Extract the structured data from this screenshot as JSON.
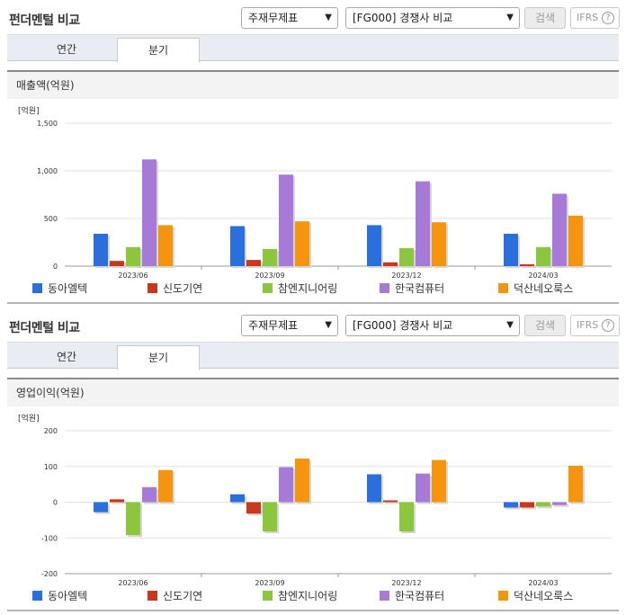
{
  "sections": [
    {
      "title": "펀더멘털 비교",
      "select_type": "주재무제표",
      "select_compare": "[FG000] 경쟁사 비교",
      "search_label": "검색",
      "ifrs_label": "IFRS",
      "help_label": "?",
      "tabs": [
        "연간",
        "분기"
      ],
      "active_tab": "분기",
      "metric_label": "매출액(억원)"
    },
    {
      "title": "펀더멘털 비교",
      "select_type": "주재무제표",
      "select_compare": "[FG000] 경쟁사 비교",
      "search_label": "검색",
      "ifrs_label": "IFRS",
      "help_label": "?",
      "tabs": [
        "연간",
        "분기"
      ],
      "active_tab": "분기",
      "metric_label": "영업이익(억원)"
    }
  ],
  "colors": {
    "동아엘텍": "#2a6fdb",
    "신도기연": "#c8391c",
    "참엔지니어링": "#8cc63f",
    "한국컴퓨터": "#a87ad8",
    "덕산네오룩스": "#f5950f"
  },
  "chart_data": [
    {
      "type": "bar",
      "unit_label": "[억원]",
      "categories": [
        "2023/06",
        "2023/09",
        "2023/12",
        "2024/03"
      ],
      "ylim": [
        0,
        1500
      ],
      "yticks": [
        0,
        500,
        1000,
        1500
      ],
      "ytick_labels": [
        "0",
        "500",
        "1,000",
        "1,500"
      ],
      "series": [
        {
          "name": "동아엘텍",
          "values": [
            340,
            420,
            430,
            340
          ]
        },
        {
          "name": "신도기연",
          "values": [
            55,
            65,
            40,
            20
          ]
        },
        {
          "name": "참엔지니어링",
          "values": [
            200,
            180,
            190,
            200
          ]
        },
        {
          "name": "한국컴퓨터",
          "values": [
            1120,
            960,
            890,
            760
          ]
        },
        {
          "name": "덕산네오룩스",
          "values": [
            430,
            470,
            460,
            530
          ]
        }
      ]
    },
    {
      "type": "bar",
      "unit_label": "[억원]",
      "categories": [
        "2023/06",
        "2023/09",
        "2023/12",
        "2024/03"
      ],
      "ylim": [
        -200,
        200
      ],
      "yticks": [
        -200,
        -100,
        0,
        100,
        200
      ],
      "ytick_labels": [
        "-200",
        "-100",
        "0",
        "100",
        "200"
      ],
      "series": [
        {
          "name": "동아엘텍",
          "values": [
            -28,
            22,
            78,
            -15
          ]
        },
        {
          "name": "신도기연",
          "values": [
            8,
            -32,
            5,
            -15
          ]
        },
        {
          "name": "참엔지니어링",
          "values": [
            -92,
            -82,
            -82,
            -12
          ]
        },
        {
          "name": "한국컴퓨터",
          "values": [
            42,
            98,
            80,
            -8
          ]
        },
        {
          "name": "덕산네오룩스",
          "values": [
            90,
            122,
            118,
            102
          ]
        }
      ]
    }
  ]
}
